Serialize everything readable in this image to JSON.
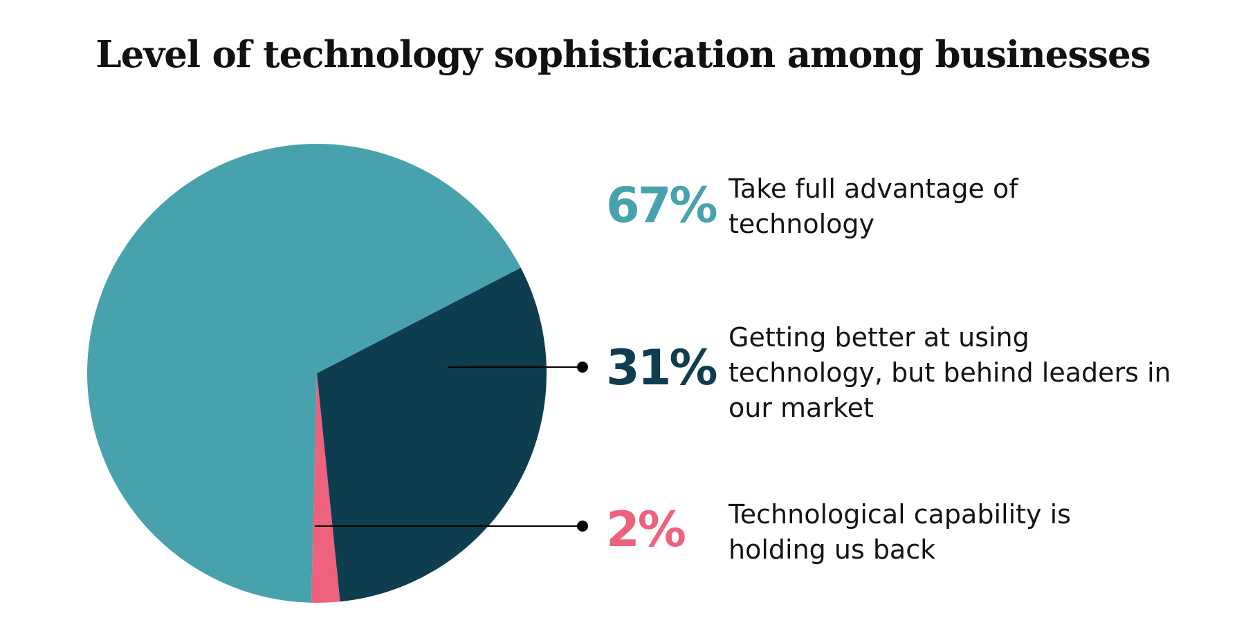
{
  "chart_data": {
    "type": "pie",
    "title": "Level of technology sophistication among businesses",
    "slices": [
      {
        "label": "Take full advantage of technology",
        "value": 67,
        "value_label": "67%",
        "color": "#48a2ae"
      },
      {
        "label": "Getting better at using technology, but behind leaders in our market",
        "value": 31,
        "value_label": "31%",
        "color": "#0d3d4f"
      },
      {
        "label": "Technological capability is holding us back",
        "value": 2,
        "value_label": "2%",
        "color": "#ed627d"
      }
    ],
    "legend_placement": "right"
  }
}
